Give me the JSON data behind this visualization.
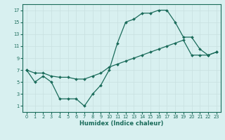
{
  "line1_x": [
    0,
    1,
    2,
    3,
    4,
    5,
    6,
    7,
    8,
    9,
    10,
    11,
    12,
    13,
    14,
    15,
    16,
    17,
    18,
    19,
    20,
    21,
    22,
    23
  ],
  "line1_y": [
    7.0,
    5.0,
    6.0,
    5.0,
    2.2,
    2.2,
    2.2,
    1.0,
    3.0,
    4.5,
    7.0,
    11.5,
    15.0,
    15.5,
    16.5,
    16.5,
    17.0,
    17.0,
    15.0,
    12.5,
    12.5,
    10.5,
    9.5,
    10.0
  ],
  "line2_x": [
    0,
    1,
    2,
    3,
    4,
    5,
    6,
    7,
    8,
    9,
    10,
    11,
    12,
    13,
    14,
    15,
    16,
    17,
    18,
    19,
    20,
    21,
    22,
    23
  ],
  "line2_y": [
    7.0,
    6.5,
    6.5,
    6.0,
    5.8,
    5.8,
    5.5,
    5.5,
    6.0,
    6.5,
    7.5,
    8.0,
    8.5,
    9.0,
    9.5,
    10.0,
    10.5,
    11.0,
    11.5,
    12.0,
    9.5,
    9.5,
    9.5,
    10.0
  ],
  "line_color": "#1a6b5a",
  "bg_color": "#d8f0f0",
  "grid_color": "#c8e0e0",
  "xlabel": "Humidex (Indice chaleur)",
  "xlim": [
    -0.5,
    23.5
  ],
  "ylim": [
    0,
    18
  ],
  "xticks": [
    0,
    1,
    2,
    3,
    4,
    5,
    6,
    7,
    8,
    9,
    10,
    11,
    12,
    13,
    14,
    15,
    16,
    17,
    18,
    19,
    20,
    21,
    22,
    23
  ],
  "yticks": [
    1,
    3,
    5,
    7,
    9,
    11,
    13,
    15,
    17
  ],
  "marker": "D",
  "markersize": 2.0,
  "linewidth": 0.9,
  "xlabel_fontsize": 6.0,
  "tick_fontsize": 4.8
}
